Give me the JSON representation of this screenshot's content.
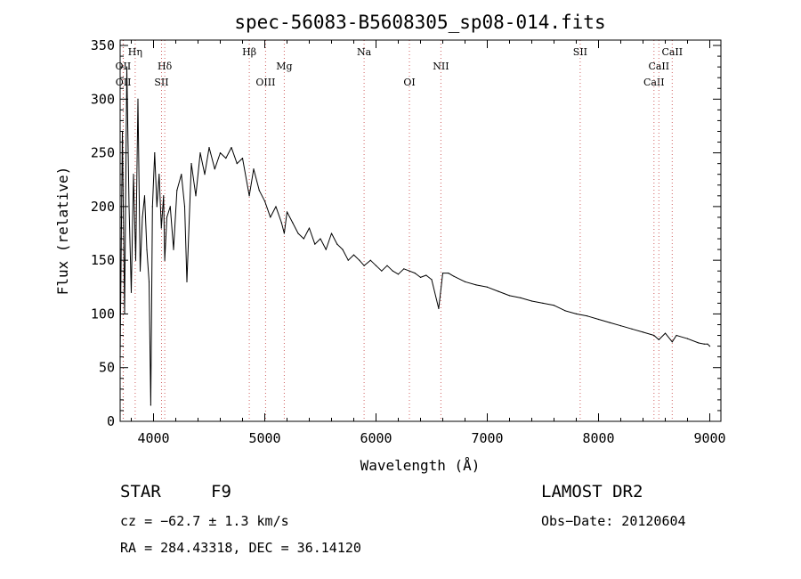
{
  "chart_data": {
    "type": "line",
    "title": "spec-56083-B5608305_sp08-014.fits",
    "xlabel": "Wavelength (Å)",
    "ylabel": "Flux (relative)",
    "xlim": [
      3700,
      9100
    ],
    "ylim": [
      0,
      355
    ],
    "xticks": [
      4000,
      5000,
      6000,
      7000,
      8000,
      9000
    ],
    "yticks": [
      0,
      50,
      100,
      150,
      200,
      250,
      300,
      350
    ],
    "grid": false,
    "series": [
      {
        "name": "spectrum",
        "x": [
          3700,
          3720,
          3740,
          3760,
          3780,
          3800,
          3820,
          3840,
          3860,
          3880,
          3900,
          3920,
          3940,
          3960,
          3975,
          3990,
          4010,
          4030,
          4050,
          4070,
          4090,
          4101,
          4120,
          4150,
          4180,
          4210,
          4250,
          4280,
          4300,
          4340,
          4380,
          4420,
          4460,
          4500,
          4550,
          4600,
          4650,
          4700,
          4750,
          4800,
          4861,
          4900,
          4950,
          5000,
          5050,
          5100,
          5150,
          5175,
          5200,
          5250,
          5300,
          5350,
          5400,
          5450,
          5500,
          5550,
          5600,
          5650,
          5700,
          5750,
          5800,
          5850,
          5893,
          5950,
          6000,
          6050,
          6100,
          6150,
          6200,
          6250,
          6300,
          6350,
          6400,
          6450,
          6500,
          6563,
          6600,
          6650,
          6700,
          6800,
          6900,
          7000,
          7100,
          7200,
          7300,
          7400,
          7500,
          7600,
          7700,
          7800,
          7900,
          8000,
          8100,
          8200,
          8300,
          8400,
          8498,
          8542,
          8600,
          8662,
          8700,
          8800,
          8900,
          8950,
          8980,
          9000
        ],
        "y": [
          60,
          270,
          100,
          330,
          200,
          120,
          230,
          150,
          300,
          140,
          190,
          210,
          160,
          130,
          15,
          200,
          250,
          200,
          230,
          180,
          210,
          150,
          190,
          200,
          160,
          215,
          230,
          200,
          130,
          240,
          210,
          250,
          230,
          255,
          235,
          250,
          245,
          255,
          240,
          245,
          210,
          235,
          215,
          205,
          190,
          200,
          185,
          175,
          195,
          185,
          175,
          170,
          180,
          165,
          170,
          160,
          175,
          165,
          160,
          150,
          155,
          150,
          145,
          150,
          145,
          140,
          145,
          140,
          137,
          142,
          140,
          138,
          134,
          136,
          132,
          105,
          138,
          138,
          135,
          130,
          127,
          125,
          121,
          117,
          115,
          112,
          110,
          108,
          103,
          100,
          98,
          95,
          92,
          89,
          86,
          83,
          80,
          76,
          82,
          74,
          80,
          77,
          73,
          72,
          72,
          70
        ]
      }
    ],
    "lines": [
      {
        "label": "OII",
        "wavelength": 3727,
        "row": 2
      },
      {
        "label": "OII",
        "wavelength": 3729,
        "row": 3
      },
      {
        "label": "Hη",
        "wavelength": 3835,
        "row": 1
      },
      {
        "label": "Hδ",
        "wavelength": 4101,
        "row": 2
      },
      {
        "label": "SII",
        "wavelength": 4072,
        "row": 3
      },
      {
        "label": "Hβ",
        "wavelength": 4861,
        "row": 1
      },
      {
        "label": "OIII",
        "wavelength": 5007,
        "row": 3
      },
      {
        "label": "Mg",
        "wavelength": 5175,
        "row": 2
      },
      {
        "label": "Na",
        "wavelength": 5893,
        "row": 1
      },
      {
        "label": "OI",
        "wavelength": 6300,
        "row": 3
      },
      {
        "label": "NII",
        "wavelength": 6583,
        "row": 2
      },
      {
        "label": "SII",
        "wavelength": 7835,
        "row": 1
      },
      {
        "label": "CaII",
        "wavelength": 8498,
        "row": 3
      },
      {
        "label": "CaII",
        "wavelength": 8542,
        "row": 2
      },
      {
        "label": "CaII",
        "wavelength": 8662,
        "row": 1
      }
    ]
  },
  "info": {
    "object_type": "STAR",
    "subclass": "F9",
    "survey": "LAMOST DR2",
    "cz": "cz = −62.7 ± 1.3 km/s",
    "obs_date": "Obs−Date: 20120604",
    "coords": "RA = 284.43318, DEC =  36.14120"
  }
}
